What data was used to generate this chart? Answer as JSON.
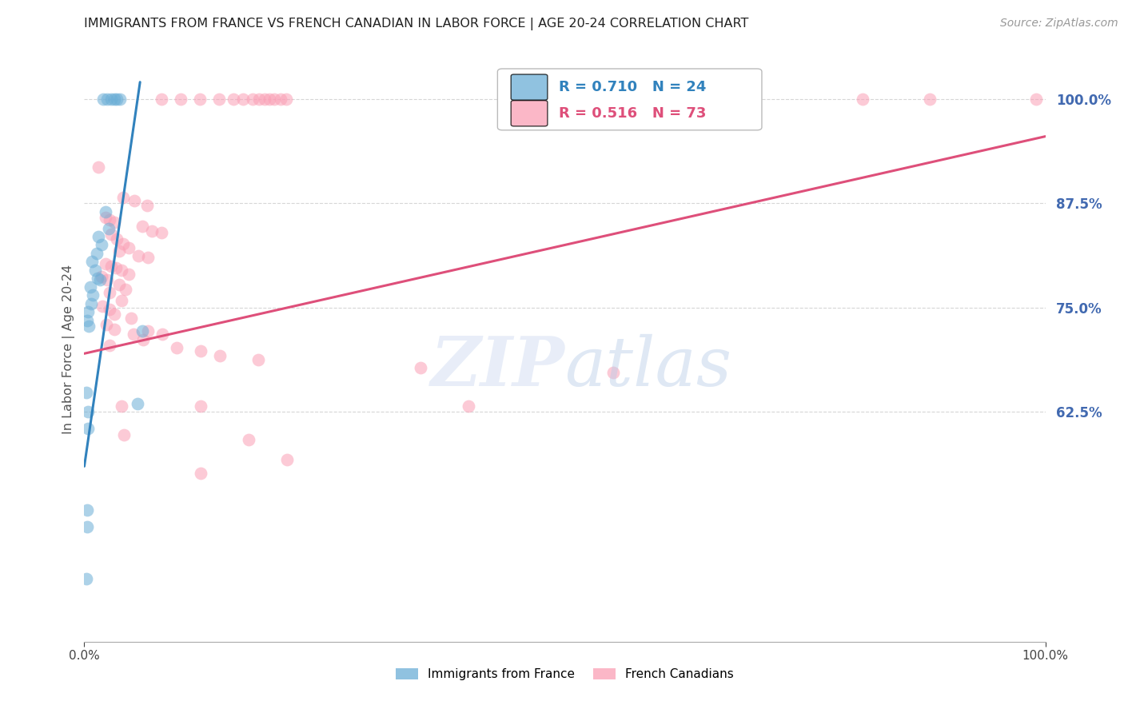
{
  "title": "IMMIGRANTS FROM FRANCE VS FRENCH CANADIAN IN LABOR FORCE | AGE 20-24 CORRELATION CHART",
  "source": "Source: ZipAtlas.com",
  "ylabel": "In Labor Force | Age 20-24",
  "xlim": [
    0.0,
    1.0
  ],
  "ylim": [
    0.35,
    1.05
  ],
  "xtick_positions": [
    0.0,
    1.0
  ],
  "xtick_labels": [
    "0.0%",
    "100.0%"
  ],
  "ytick_values": [
    0.625,
    0.75,
    0.875,
    1.0
  ],
  "ytick_labels": [
    "62.5%",
    "75.0%",
    "87.5%",
    "100.0%"
  ],
  "grid_color": "#cccccc",
  "background_color": "#ffffff",
  "legend_r1": "0.710",
  "legend_n1": "24",
  "legend_r2": "0.516",
  "legend_n2": "73",
  "color_blue": "#6baed6",
  "color_pink": "#fa9fb5",
  "color_blue_line": "#3182bd",
  "color_pink_line": "#de4f7a",
  "right_axis_color": "#4169b0",
  "title_color": "#222222",
  "blue_scatter": [
    [
      0.02,
      1.0
    ],
    [
      0.024,
      1.0
    ],
    [
      0.028,
      1.0
    ],
    [
      0.031,
      1.0
    ],
    [
      0.034,
      1.0
    ],
    [
      0.037,
      1.0
    ],
    [
      0.022,
      0.865
    ],
    [
      0.025,
      0.845
    ],
    [
      0.015,
      0.835
    ],
    [
      0.018,
      0.825
    ],
    [
      0.013,
      0.815
    ],
    [
      0.008,
      0.805
    ],
    [
      0.011,
      0.795
    ],
    [
      0.014,
      0.785
    ],
    [
      0.016,
      0.783
    ],
    [
      0.006,
      0.775
    ],
    [
      0.009,
      0.765
    ],
    [
      0.007,
      0.755
    ],
    [
      0.004,
      0.745
    ],
    [
      0.003,
      0.735
    ],
    [
      0.005,
      0.728
    ],
    [
      0.06,
      0.722
    ],
    [
      0.002,
      0.648
    ],
    [
      0.055,
      0.635
    ],
    [
      0.004,
      0.625
    ],
    [
      0.004,
      0.605
    ],
    [
      0.003,
      0.508
    ],
    [
      0.003,
      0.488
    ],
    [
      0.002,
      0.425
    ]
  ],
  "pink_scatter": [
    [
      0.08,
      1.0
    ],
    [
      0.1,
      1.0
    ],
    [
      0.12,
      1.0
    ],
    [
      0.14,
      1.0
    ],
    [
      0.155,
      1.0
    ],
    [
      0.165,
      1.0
    ],
    [
      0.175,
      1.0
    ],
    [
      0.182,
      1.0
    ],
    [
      0.188,
      1.0
    ],
    [
      0.193,
      1.0
    ],
    [
      0.198,
      1.0
    ],
    [
      0.204,
      1.0
    ],
    [
      0.21,
      1.0
    ],
    [
      0.81,
      1.0
    ],
    [
      0.88,
      1.0
    ],
    [
      0.99,
      1.0
    ],
    [
      0.015,
      0.918
    ],
    [
      0.04,
      0.882
    ],
    [
      0.052,
      0.878
    ],
    [
      0.065,
      0.872
    ],
    [
      0.022,
      0.858
    ],
    [
      0.026,
      0.855
    ],
    [
      0.031,
      0.852
    ],
    [
      0.06,
      0.847
    ],
    [
      0.07,
      0.842
    ],
    [
      0.08,
      0.84
    ],
    [
      0.028,
      0.838
    ],
    [
      0.034,
      0.832
    ],
    [
      0.04,
      0.826
    ],
    [
      0.046,
      0.822
    ],
    [
      0.036,
      0.818
    ],
    [
      0.056,
      0.812
    ],
    [
      0.066,
      0.81
    ],
    [
      0.022,
      0.802
    ],
    [
      0.028,
      0.8
    ],
    [
      0.033,
      0.798
    ],
    [
      0.039,
      0.795
    ],
    [
      0.046,
      0.79
    ],
    [
      0.018,
      0.787
    ],
    [
      0.024,
      0.783
    ],
    [
      0.036,
      0.778
    ],
    [
      0.043,
      0.772
    ],
    [
      0.026,
      0.768
    ],
    [
      0.039,
      0.758
    ],
    [
      0.019,
      0.752
    ],
    [
      0.026,
      0.748
    ],
    [
      0.031,
      0.742
    ],
    [
      0.049,
      0.737
    ],
    [
      0.023,
      0.73
    ],
    [
      0.031,
      0.724
    ],
    [
      0.051,
      0.718
    ],
    [
      0.061,
      0.712
    ],
    [
      0.066,
      0.722
    ],
    [
      0.081,
      0.718
    ],
    [
      0.026,
      0.705
    ],
    [
      0.096,
      0.702
    ],
    [
      0.121,
      0.698
    ],
    [
      0.141,
      0.692
    ],
    [
      0.181,
      0.688
    ],
    [
      0.35,
      0.678
    ],
    [
      0.039,
      0.632
    ],
    [
      0.121,
      0.632
    ],
    [
      0.4,
      0.632
    ],
    [
      0.041,
      0.598
    ],
    [
      0.171,
      0.592
    ],
    [
      0.55,
      0.672
    ],
    [
      0.211,
      0.568
    ],
    [
      0.121,
      0.552
    ]
  ],
  "blue_line_x": [
    0.0,
    0.058
  ],
  "blue_line_y": [
    0.56,
    1.02
  ],
  "pink_line_x": [
    0.0,
    1.0
  ],
  "pink_line_y": [
    0.695,
    0.955
  ]
}
